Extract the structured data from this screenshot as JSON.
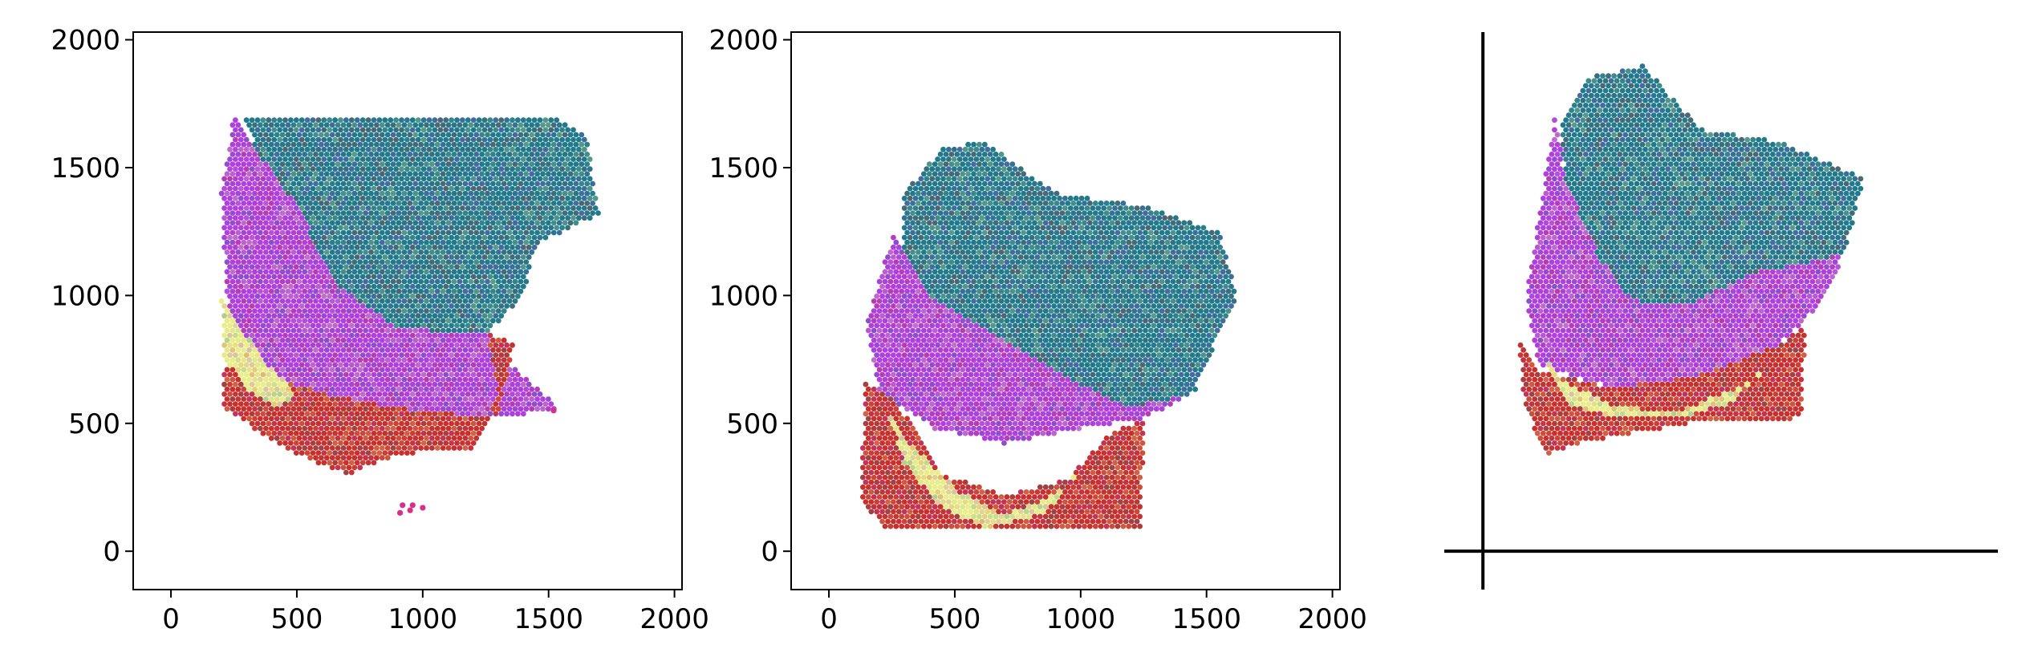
{
  "chart_data": [
    {
      "type": "scatter",
      "title": "",
      "xlabel": "",
      "ylabel": "",
      "xlim": [
        -150,
        2030
      ],
      "ylim": [
        -150,
        2030
      ],
      "x_ticks": [
        0,
        500,
        1000,
        1500,
        2000
      ],
      "y_ticks": [
        0,
        500,
        1000,
        1500,
        2000
      ],
      "x_tick_labels": [
        "0",
        "500",
        "1000",
        "1500",
        "2000"
      ],
      "y_tick_labels": [
        "0",
        "500",
        "1000",
        "1500",
        "2000"
      ],
      "grid": false,
      "description_regions": [
        {
          "name": "teal",
          "color": "#1f7a8c",
          "outline": [
            [
              280,
              1700
            ],
            [
              1530,
              1700
            ],
            [
              1650,
              1620
            ],
            [
              1700,
              1320
            ],
            [
              1450,
              1200
            ],
            [
              1400,
              1000
            ],
            [
              1250,
              850
            ],
            [
              900,
              870
            ],
            [
              650,
              1050
            ],
            [
              500,
              1350
            ],
            [
              350,
              1550
            ]
          ]
        },
        {
          "name": "purple",
          "color": "#b13fe0",
          "outline": [
            [
              250,
              1700
            ],
            [
              350,
              1550
            ],
            [
              500,
              1350
            ],
            [
              650,
              1050
            ],
            [
              900,
              870
            ],
            [
              1250,
              850
            ],
            [
              1380,
              700
            ],
            [
              1550,
              560
            ],
            [
              1300,
              520
            ],
            [
              900,
              560
            ],
            [
              600,
              620
            ],
            [
              330,
              700
            ],
            [
              230,
              850
            ],
            [
              200,
              1400
            ]
          ]
        },
        {
          "name": "red",
          "color": "#c9302c",
          "outline": [
            [
              210,
              720
            ],
            [
              330,
              700
            ],
            [
              600,
              620
            ],
            [
              900,
              560
            ],
            [
              1300,
              520
            ],
            [
              1360,
              820
            ],
            [
              1260,
              850
            ],
            [
              1300,
              600
            ],
            [
              1200,
              400
            ],
            [
              900,
              380
            ],
            [
              700,
              300
            ],
            [
              450,
              400
            ],
            [
              210,
              560
            ]
          ]
        },
        {
          "name": "yellow",
          "color": "#e9ef86",
          "outline": [
            [
              200,
              1000
            ],
            [
              260,
              900
            ],
            [
              370,
              740
            ],
            [
              500,
              620
            ],
            [
              420,
              560
            ],
            [
              300,
              640
            ],
            [
              210,
              760
            ]
          ]
        }
      ],
      "isolated_points": [
        [
          910,
          150
        ],
        [
          950,
          160
        ],
        [
          920,
          180
        ],
        [
          960,
          180
        ],
        [
          1000,
          170
        ],
        [
          1520,
          550
        ]
      ]
    },
    {
      "type": "scatter",
      "title": "",
      "xlabel": "",
      "ylabel": "",
      "xlim": [
        -150,
        2030
      ],
      "ylim": [
        -150,
        2030
      ],
      "x_ticks": [
        0,
        500,
        1000,
        1500,
        2000
      ],
      "y_ticks": [
        0,
        500,
        1000,
        1500,
        2000
      ],
      "x_tick_labels": [
        "0",
        "500",
        "1000",
        "1500",
        "2000"
      ],
      "y_tick_labels": [
        "0",
        "500",
        "1000",
        "1500",
        "2000"
      ],
      "grid": false,
      "description_regions": [
        {
          "name": "teal",
          "color": "#1f7a8c",
          "outline": [
            [
              300,
              1400
            ],
            [
              450,
              1580
            ],
            [
              620,
              1600
            ],
            [
              900,
              1400
            ],
            [
              1250,
              1350
            ],
            [
              1550,
              1250
            ],
            [
              1620,
              1000
            ],
            [
              1550,
              850
            ],
            [
              1450,
              620
            ],
            [
              1200,
              560
            ],
            [
              900,
              700
            ],
            [
              650,
              850
            ],
            [
              400,
              1000
            ],
            [
              290,
              1200
            ]
          ]
        },
        {
          "name": "purple",
          "color": "#b13fe0",
          "outline": [
            [
              260,
              1250
            ],
            [
              400,
              1000
            ],
            [
              650,
              850
            ],
            [
              900,
              700
            ],
            [
              1200,
              560
            ],
            [
              1450,
              620
            ],
            [
              1250,
              520
            ],
            [
              950,
              470
            ],
            [
              700,
              420
            ],
            [
              420,
              480
            ],
            [
              200,
              620
            ],
            [
              150,
              900
            ]
          ]
        },
        {
          "name": "red",
          "color": "#c9302c",
          "outline": [
            [
              140,
              660
            ],
            [
              260,
              600
            ],
            [
              450,
              300
            ],
            [
              700,
              220
            ],
            [
              950,
              280
            ],
            [
              1100,
              450
            ],
            [
              1250,
              520
            ],
            [
              1240,
              80
            ],
            [
              230,
              80
            ],
            [
              130,
              200
            ]
          ]
        },
        {
          "name": "yellow",
          "color": "#e9ef86",
          "outline": [
            [
              230,
              560
            ],
            [
              330,
              410
            ],
            [
              520,
              230
            ],
            [
              700,
              140
            ],
            [
              900,
              220
            ],
            [
              980,
              300
            ],
            [
              860,
              150
            ],
            [
              620,
              90
            ],
            [
              440,
              180
            ],
            [
              300,
              340
            ]
          ]
        }
      ]
    },
    {
      "type": "scatter",
      "title": "",
      "xlabel": "",
      "ylabel": "",
      "xlim": [
        -150,
        2030
      ],
      "ylim": [
        -150,
        2030
      ],
      "grid": false,
      "axis_lines_only": true,
      "description_regions": [
        {
          "name": "teal",
          "color": "#1f7a8c",
          "outline": [
            [
              400,
              1850
            ],
            [
              620,
              1900
            ],
            [
              850,
              1650
            ],
            [
              1150,
              1600
            ],
            [
              1480,
              1460
            ],
            [
              1400,
              1160
            ],
            [
              1020,
              1080
            ],
            [
              800,
              960
            ],
            [
              580,
              980
            ],
            [
              450,
              1150
            ],
            [
              320,
              1450
            ],
            [
              300,
              1650
            ]
          ]
        },
        {
          "name": "purple",
          "color": "#b13fe0",
          "outline": [
            [
              280,
              1700
            ],
            [
              320,
              1450
            ],
            [
              450,
              1150
            ],
            [
              580,
              980
            ],
            [
              800,
              960
            ],
            [
              1020,
              1080
            ],
            [
              1400,
              1160
            ],
            [
              1310,
              960
            ],
            [
              1140,
              800
            ],
            [
              800,
              680
            ],
            [
              500,
              640
            ],
            [
              210,
              730
            ],
            [
              170,
              1000
            ]
          ]
        },
        {
          "name": "red",
          "color": "#c9302c",
          "outline": [
            [
              140,
              820
            ],
            [
              230,
              700
            ],
            [
              500,
              640
            ],
            [
              800,
              680
            ],
            [
              1140,
              800
            ],
            [
              1250,
              880
            ],
            [
              1240,
              520
            ],
            [
              800,
              500
            ],
            [
              360,
              420
            ],
            [
              250,
              380
            ],
            [
              160,
              560
            ]
          ]
        },
        {
          "name": "yellow",
          "color": "#e9ef86",
          "outline": [
            [
              240,
              760
            ],
            [
              320,
              660
            ],
            [
              520,
              560
            ],
            [
              760,
              550
            ],
            [
              1000,
              640
            ],
            [
              1100,
              720
            ],
            [
              960,
              580
            ],
            [
              760,
              520
            ],
            [
              520,
              520
            ],
            [
              320,
              580
            ]
          ]
        }
      ]
    }
  ]
}
